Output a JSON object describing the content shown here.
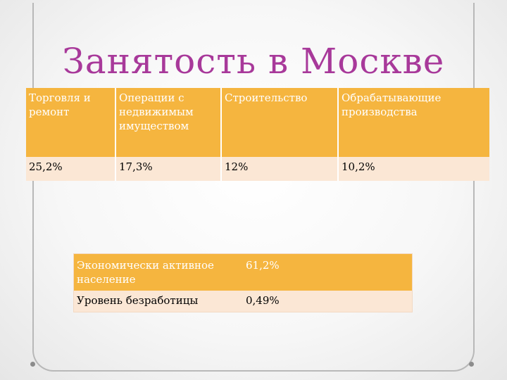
{
  "title": "Занятость в Москве",
  "sectors": {
    "headers": [
      "Торговля и ремонт",
      "Операции с недвижимым имуществом",
      "Строительство",
      "Обрабатывающие производства"
    ],
    "values": [
      "25,2%",
      "17,3%",
      "12%",
      "10,2%"
    ]
  },
  "labor": {
    "active_label": "Экономически активное население",
    "active_value": "61,2%",
    "unemployment_label": "Уровень безработицы",
    "unemployment_value": "0,49%"
  }
}
